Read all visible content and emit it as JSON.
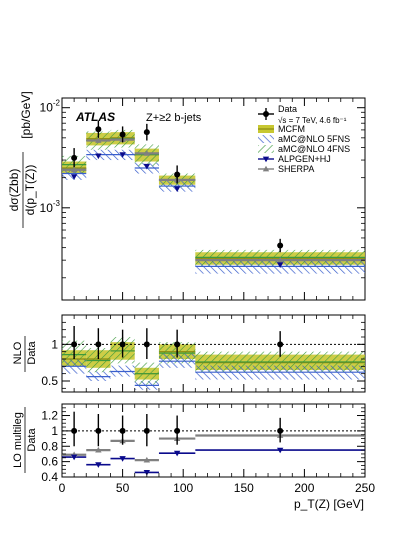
{
  "chart_data": {
    "type": "scatter",
    "experiment": "ATLAS",
    "process": "Z+≥2 b-jets",
    "xlabel": "p_T(Z) [GeV]",
    "xlim": [
      0,
      250
    ],
    "x_ticks": [
      "0",
      "50",
      "100",
      "150",
      "200",
      "250"
    ],
    "bins": [
      [
        0,
        20
      ],
      [
        20,
        40
      ],
      [
        40,
        60
      ],
      [
        60,
        80
      ],
      [
        80,
        110
      ],
      [
        110,
        250
      ]
    ],
    "bin_centers": [
      10,
      30,
      50,
      70,
      95,
      180
    ],
    "colors": {
      "data": "#000000",
      "mcfm": "#c8c832",
      "amc5": "#3a5fcd",
      "amc4": "#3d9a3d",
      "alpgen": "#0a0a8c",
      "sherpa": "#808080"
    },
    "legend": {
      "placement": "top-right",
      "data_label": "Data",
      "data_sub": "√s = 7 TeV, 4.6 fb⁻¹",
      "entries": [
        {
          "key": "mcfm",
          "label": "MCFM"
        },
        {
          "key": "amc5",
          "label": "aMC@NLO 5FNS"
        },
        {
          "key": "amc4",
          "label": "aMC@NLO 4FNS"
        },
        {
          "key": "alpgen",
          "label": "ALPGEN+HJ"
        },
        {
          "key": "sherpa",
          "label": "SHERPA"
        }
      ]
    },
    "panels": [
      {
        "id": "main",
        "ylabel_lines": [
          "dσ(Zbb)",
          "d(p_T(Z))",
          "[pb/GeV]"
        ],
        "ylabel": "dσ(Zbb) / d(p_T(Z)) [pb/GeV]",
        "yscale": "log",
        "ylim": [
          0.00012,
          0.0125
        ],
        "y_tick_labels": [
          {
            "value": 0.01,
            "base": "10",
            "exp": "-2"
          },
          {
            "value": 0.001,
            "base": "10",
            "exp": "-3"
          }
        ],
        "data": {
          "values": [
            0.00315,
            0.0061,
            0.0054,
            0.0057,
            0.00215,
            0.00042
          ],
          "err_low": [
            0.0006,
            0.0011,
            0.0009,
            0.001,
            0.0004,
            6e-05
          ],
          "err_high": [
            0.0008,
            0.0013,
            0.0011,
            0.0012,
            0.0005,
            7e-05
          ]
        },
        "bands": {
          "mcfm": [
            [
              0.0022,
              0.0029
            ],
            [
              0.0042,
              0.0056
            ],
            [
              0.0043,
              0.0057
            ],
            [
              0.0029,
              0.0039
            ],
            [
              0.0017,
              0.0021
            ],
            [
              0.00027,
              0.00036
            ]
          ],
          "amc5": [
            [
              0.0019,
              0.0025
            ],
            [
              0.003,
              0.0038
            ],
            [
              0.003,
              0.0038
            ],
            [
              0.0022,
              0.0028
            ],
            [
              0.00145,
              0.00185
            ],
            [
              0.00022,
              0.0003
            ]
          ],
          "amc4": [
            [
              0.0022,
              0.0033
            ],
            [
              0.0038,
              0.0058
            ],
            [
              0.004,
              0.006
            ],
            [
              0.0026,
              0.0043
            ],
            [
              0.0016,
              0.0022
            ],
            [
              0.00026,
              0.00038
            ]
          ]
        },
        "lines": {
          "mcfm": [
            0.0025,
            0.0049,
            0.005,
            0.0034,
            0.0019,
            0.00031
          ],
          "amc5": [
            0.0022,
            0.0034,
            0.0034,
            0.0025,
            0.00165,
            0.00026
          ],
          "amc4": [
            0.0027,
            0.0047,
            0.0049,
            0.0034,
            0.0019,
            0.00032
          ],
          "sherpa": [
            0.0024,
            0.0047,
            0.0048,
            0.0035,
            0.0019,
            0.0003
          ]
        },
        "markers": {
          "alpgen": [
            0.00205,
            0.0033,
            0.0034,
            0.0026,
            0.00155,
            0.00027
          ],
          "sherpa": [
            0.0024,
            0.0047,
            0.0048,
            0.0035,
            0.0019,
            0.0003
          ]
        }
      },
      {
        "id": "nlo_ratio",
        "ylabel_lines": [
          "NLO",
          "Data"
        ],
        "ylabel": "NLO / Data",
        "yscale": "linear",
        "ylim": [
          0.35,
          1.4
        ],
        "y_ticks": [
          0.5,
          1
        ],
        "y_tick_labels": [
          "0.5",
          "1"
        ],
        "reference_line": 1,
        "data": {
          "values": [
            1,
            1,
            1,
            1,
            1,
            1
          ],
          "err_low": [
            0.2,
            0.2,
            0.18,
            0.2,
            0.18,
            0.17
          ],
          "err_high": [
            0.25,
            0.22,
            0.2,
            0.22,
            0.2,
            0.18
          ]
        },
        "bands": {
          "mcfm": [
            [
              0.7,
              0.92
            ],
            [
              0.68,
              0.92
            ],
            [
              0.79,
              1.03
            ],
            [
              0.52,
              0.68
            ],
            [
              0.8,
              1.0
            ],
            [
              0.65,
              0.86
            ]
          ],
          "amc5": [
            [
              0.6,
              0.8
            ],
            [
              0.5,
              0.63
            ],
            [
              0.56,
              0.71
            ],
            [
              0.38,
              0.5
            ],
            [
              0.68,
              0.87
            ],
            [
              0.52,
              0.71
            ]
          ],
          "amc4": [
            [
              0.7,
              1.05
            ],
            [
              0.62,
              0.95
            ],
            [
              0.74,
              1.1
            ],
            [
              0.45,
              0.75
            ],
            [
              0.74,
              1.03
            ],
            [
              0.62,
              0.9
            ]
          ]
        },
        "lines": {
          "mcfm": [
            0.8,
            0.8,
            0.91,
            0.6,
            0.9,
            0.75
          ],
          "amc5": [
            0.7,
            0.56,
            0.63,
            0.44,
            0.77,
            0.62
          ],
          "amc4": [
            0.86,
            0.78,
            0.91,
            0.6,
            0.88,
            0.76
          ]
        }
      },
      {
        "id": "lo_ratio",
        "ylabel_lines": [
          "LO multileg",
          "Data"
        ],
        "ylabel": "LO multileg / Data",
        "yscale": "linear",
        "ylim": [
          0.4,
          1.35
        ],
        "y_ticks": [
          0.4,
          0.6,
          0.8,
          1,
          1.2
        ],
        "y_tick_labels": [
          "0.4",
          "0.6",
          "0.8",
          "1",
          "1.2"
        ],
        "reference_line": 1,
        "data": {
          "values": [
            1,
            1,
            1,
            1,
            1,
            1
          ],
          "err_low": [
            0.2,
            0.2,
            0.18,
            0.2,
            0.18,
            0.15
          ],
          "err_high": [
            0.25,
            0.22,
            0.2,
            0.22,
            0.2,
            0.17
          ]
        },
        "lines": {
          "alpgen": [
            0.66,
            0.56,
            0.64,
            0.46,
            0.71,
            0.75
          ],
          "sherpa": [
            0.69,
            0.75,
            0.87,
            0.62,
            0.9,
            0.94
          ]
        },
        "markers": {
          "alpgen": [
            0.66,
            0.56,
            0.64,
            0.46,
            0.71,
            0.75
          ],
          "sherpa": [
            0.69,
            0.75,
            0.87,
            0.62,
            0.9,
            0.94
          ]
        }
      }
    ]
  }
}
